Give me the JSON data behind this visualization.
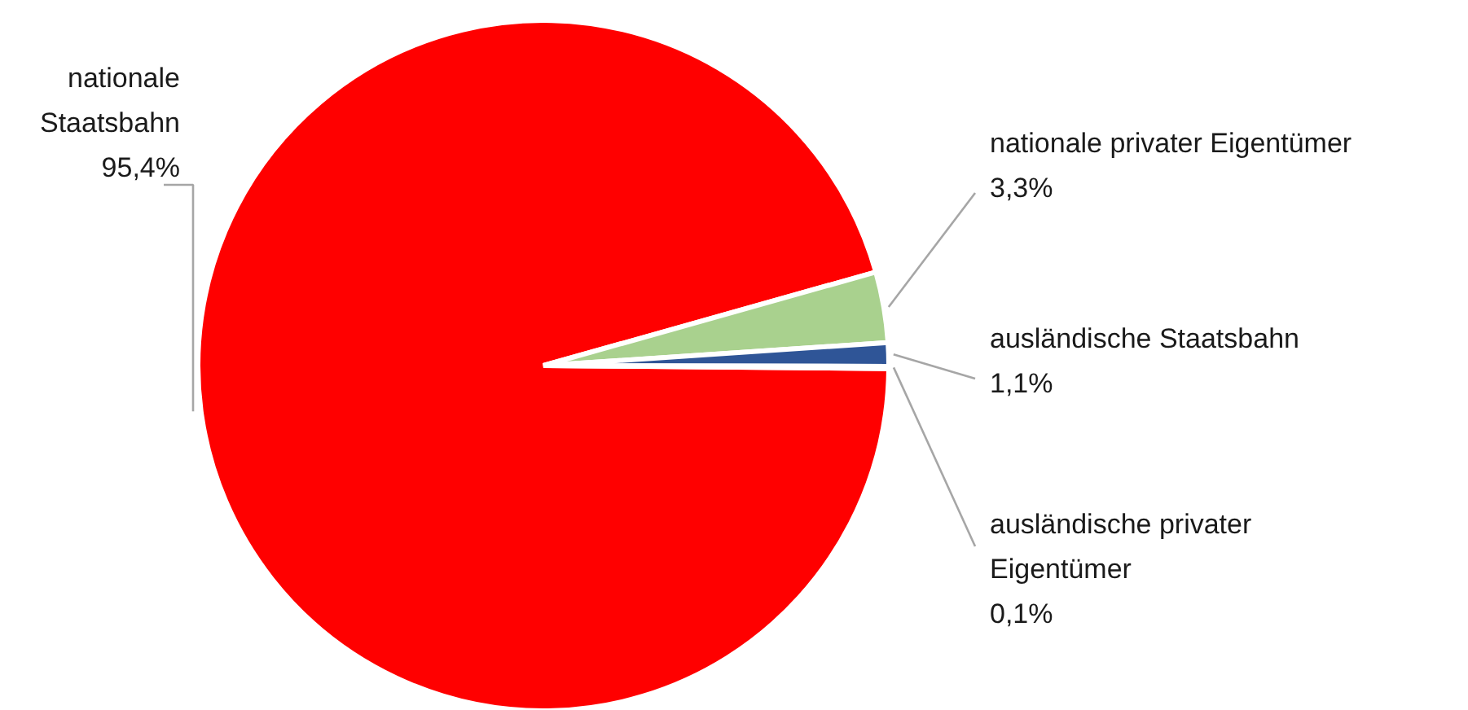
{
  "chart_data": {
    "type": "pie",
    "categories": [
      "nationale Staatsbahn",
      "nationale privater Eigentümer",
      "ausländische Staatsbahn",
      "ausländische privater Eigentümer"
    ],
    "values": [
      95.4,
      3.3,
      1.1,
      0.1
    ],
    "value_labels": [
      "95,4%",
      "3,3%",
      "1,1%",
      "0,1%"
    ],
    "colors": [
      "#ff0000",
      "#a9d18e",
      "#2f5597",
      "#a5a5a5"
    ]
  }
}
